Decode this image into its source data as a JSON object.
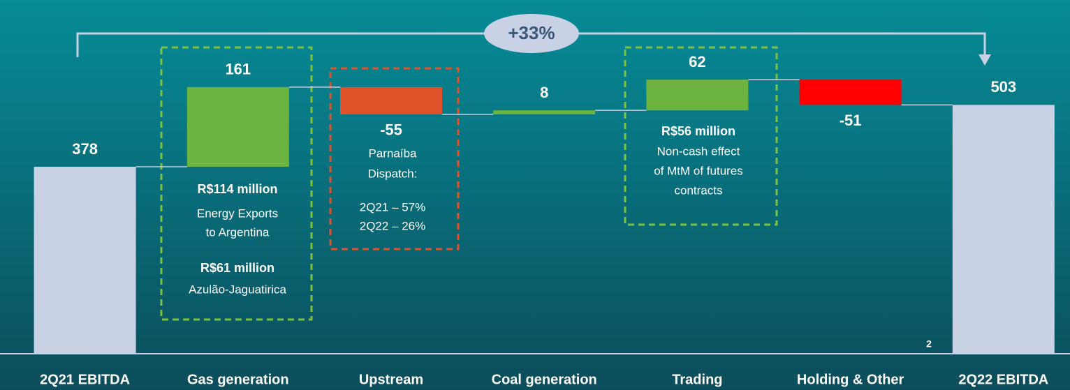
{
  "chart_data": {
    "type": "waterfall",
    "categories": [
      "2Q21 EBITDA",
      "Gas generation",
      "Upstream",
      "Coal generation",
      "Trading",
      "Holding & Other",
      "2Q22 EBITDA"
    ],
    "values": [
      378,
      161,
      -55,
      8,
      62,
      -51,
      503
    ],
    "colors": [
      "#c8d2e4",
      "#6db33f",
      "#e0522a",
      "#6db33f",
      "#6db33f",
      "#ff0000",
      "#c8d2e4"
    ],
    "growth_label": "+33%",
    "annotations": [
      {
        "lines": [
          "R$114 million",
          "Energy Exports",
          "to Argentina",
          "R$61 million",
          "Azulão-Jaguatirica"
        ]
      },
      {
        "lines": [
          "Parnaíba",
          "Dispatch:",
          "2Q21 – 57%",
          "2Q22 – 26%"
        ]
      },
      {
        "lines": [
          "R$56 million",
          "Non-cash effect",
          "of MtM of futures",
          "contracts"
        ]
      }
    ],
    "page_number": "2"
  }
}
